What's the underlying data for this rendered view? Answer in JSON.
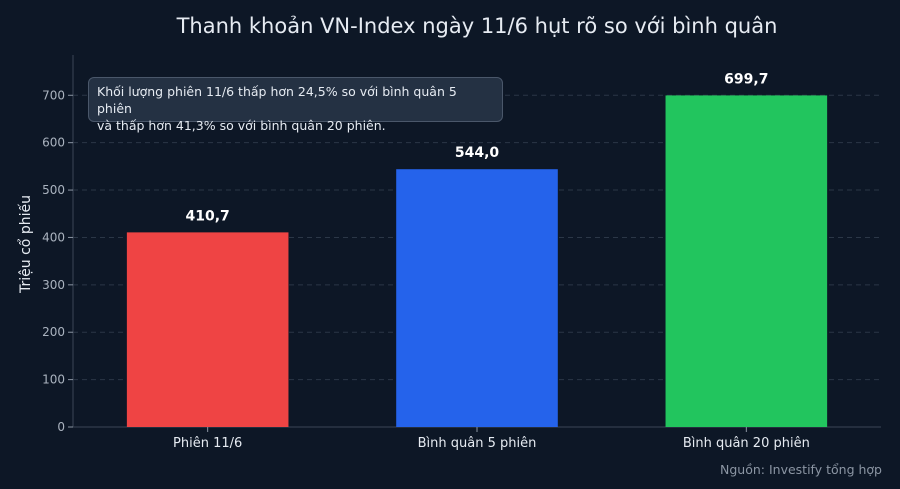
{
  "chart_data": {
    "type": "bar",
    "title": "Thanh khoản VN-Index ngày 11/6 hụt rõ so với bình quân",
    "ylabel": "Triệu cổ phiếu",
    "xlabel": "",
    "categories": [
      "Phiên 11/6",
      "Bình quân 5 phiên",
      "Bình quân 20 phiên"
    ],
    "values": [
      410.7,
      544.0,
      699.7
    ],
    "value_labels": [
      "410,7",
      "544,0",
      "699,7"
    ],
    "bar_colors": [
      "#ef4444",
      "#2563eb",
      "#22c55e"
    ],
    "ylim": [
      0,
      785
    ],
    "yticks": [
      0,
      100,
      200,
      300,
      400,
      500,
      600,
      700
    ],
    "grid": true,
    "annotation": {
      "line1": "Khối lượng phiên 11/6 thấp hơn 24,5% so với bình quân 5 phiên",
      "line2": "và thấp hơn 41,3% so với bình quân 20 phiên."
    },
    "source": "Nguồn: Investify tổng hợp"
  }
}
